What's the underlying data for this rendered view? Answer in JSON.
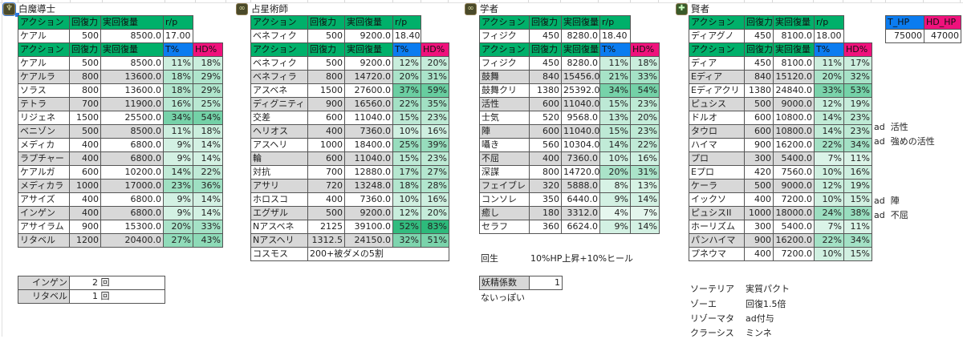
{
  "columns": {
    "action": "アクション",
    "power": "回復力",
    "actual": "実回復量",
    "rp": "r/p",
    "t": "T%",
    "hd": "HD%"
  },
  "colors": {
    "header_green": "#00b06a",
    "t_blue": "#0b7cf0",
    "hd_pink": "#f0117c",
    "row_gray": "#d8d8d8"
  },
  "hp": {
    "t_label": "T_HP",
    "hd_label": "HD_HP",
    "t_value": "75000",
    "hd_value": "47000"
  },
  "whm": {
    "title": "白魔導士",
    "icon": "staff-icon",
    "base": {
      "name": "ケアル",
      "power": "500",
      "actual": "8500.0",
      "rp": "17.00"
    },
    "rows": [
      {
        "name": "ケアル",
        "power": "500",
        "actual": "8500.0",
        "t": "11%",
        "hd": "18%"
      },
      {
        "name": "ケアルラ",
        "power": "800",
        "actual": "13600.0",
        "t": "18%",
        "hd": "29%"
      },
      {
        "name": "ソラス",
        "power": "800",
        "actual": "13600.0",
        "t": "18%",
        "hd": "29%"
      },
      {
        "name": "テトラ",
        "power": "700",
        "actual": "11900.0",
        "t": "16%",
        "hd": "25%"
      },
      {
        "name": "リジェネ",
        "power": "1500",
        "actual": "25500.0",
        "t": "34%",
        "hd": "54%"
      },
      {
        "name": "ベニゾン",
        "power": "500",
        "actual": "8500.0",
        "t": "11%",
        "hd": "18%"
      },
      {
        "name": "メディカ",
        "power": "400",
        "actual": "6800.0",
        "t": "9%",
        "hd": "14%"
      },
      {
        "name": "ラプチャー",
        "power": "400",
        "actual": "6800.0",
        "t": "9%",
        "hd": "14%"
      },
      {
        "name": "ケアルガ",
        "power": "600",
        "actual": "10200.0",
        "t": "14%",
        "hd": "22%"
      },
      {
        "name": "メディカラ",
        "power": "1000",
        "actual": "17000.0",
        "t": "23%",
        "hd": "36%"
      },
      {
        "name": "アサイズ",
        "power": "400",
        "actual": "6800.0",
        "t": "9%",
        "hd": "14%"
      },
      {
        "name": "インゲン",
        "power": "400",
        "actual": "6800.0",
        "t": "9%",
        "hd": "14%"
      },
      {
        "name": "アサイラム",
        "power": "900",
        "actual": "15300.0",
        "t": "20%",
        "hd": "33%"
      },
      {
        "name": "リタベル",
        "power": "1200",
        "actual": "20400.0",
        "t": "27%",
        "hd": "43%"
      }
    ],
    "counts": [
      {
        "name": "インゲン",
        "value": "2 回"
      },
      {
        "name": "リタベル",
        "value": "1 回"
      }
    ]
  },
  "ast": {
    "title": "占星術師",
    "icon": "scales-icon",
    "base": {
      "name": "ベネフィク",
      "power": "500",
      "actual": "9200.0",
      "rp": "18.40"
    },
    "rows": [
      {
        "name": "ベネフィク",
        "power": "500",
        "actual": "9200.0",
        "t": "12%",
        "hd": "20%"
      },
      {
        "name": "ベネフィラ",
        "power": "800",
        "actual": "14720.0",
        "t": "20%",
        "hd": "31%"
      },
      {
        "name": "アスベネ",
        "power": "1500",
        "actual": "27600.0",
        "t": "37%",
        "hd": "59%"
      },
      {
        "name": "ディグニティ",
        "power": "900",
        "actual": "16560.0",
        "t": "22%",
        "hd": "35%"
      },
      {
        "name": "交差",
        "power": "600",
        "actual": "11040.0",
        "t": "15%",
        "hd": "23%"
      },
      {
        "name": "ヘリオス",
        "power": "400",
        "actual": "7360.0",
        "t": "10%",
        "hd": "16%"
      },
      {
        "name": "アスヘリ",
        "power": "1000",
        "actual": "18400.0",
        "t": "25%",
        "hd": "39%"
      },
      {
        "name": "輪",
        "power": "600",
        "actual": "11040.0",
        "t": "15%",
        "hd": "23%"
      },
      {
        "name": "対抗",
        "power": "700",
        "actual": "12880.0",
        "t": "17%",
        "hd": "27%"
      },
      {
        "name": "アサリ",
        "power": "720",
        "actual": "13248.0",
        "t": "18%",
        "hd": "28%"
      },
      {
        "name": "ホロスコ",
        "power": "400",
        "actual": "7360.0",
        "t": "10%",
        "hd": "16%"
      },
      {
        "name": "エグザル",
        "power": "500",
        "actual": "9200.0",
        "t": "12%",
        "hd": "20%"
      },
      {
        "name": "Nアスベネ",
        "power": "2125",
        "actual": "39100.0",
        "t": "52%",
        "hd": "83%"
      },
      {
        "name": "Nアスヘリ",
        "power": "1312.5",
        "actual": "24150.0",
        "t": "32%",
        "hd": "51%"
      }
    ],
    "cosmos": {
      "name": "コスモス",
      "value": "200+被ダメの5割"
    }
  },
  "sch": {
    "title": "学者",
    "icon": "scales-icon",
    "base": {
      "name": "フィジク",
      "power": "450",
      "actual": "8280.0",
      "rp": "18.40"
    },
    "rows": [
      {
        "name": "フィジク",
        "power": "450",
        "actual": "8280.0",
        "t": "11%",
        "hd": "18%"
      },
      {
        "name": "鼓舞",
        "power": "840",
        "actual": "15456.0",
        "t": "21%",
        "hd": "33%"
      },
      {
        "name": "鼓舞クリ",
        "power": "1380",
        "actual": "25392.0",
        "t": "34%",
        "hd": "54%"
      },
      {
        "name": "活性",
        "power": "600",
        "actual": "11040.0",
        "t": "15%",
        "hd": "23%"
      },
      {
        "name": "士気",
        "power": "520",
        "actual": "9568.0",
        "t": "13%",
        "hd": "20%"
      },
      {
        "name": "陣",
        "power": "600",
        "actual": "11040.0",
        "t": "15%",
        "hd": "23%"
      },
      {
        "name": "囁き",
        "power": "560",
        "actual": "10304.0",
        "t": "14%",
        "hd": "22%"
      },
      {
        "name": "不屈",
        "power": "400",
        "actual": "7360.0",
        "t": "10%",
        "hd": "16%"
      },
      {
        "name": "深謀",
        "power": "800",
        "actual": "14720.0",
        "t": "20%",
        "hd": "31%"
      },
      {
        "name": "フェイブレ",
        "power": "320",
        "actual": "5888.0",
        "t": "8%",
        "hd": "13%"
      },
      {
        "name": "コンソレ",
        "power": "350",
        "actual": "6440.0",
        "t": "9%",
        "hd": "14%"
      },
      {
        "name": "癒し",
        "power": "180",
        "actual": "3312.0",
        "t": "4%",
        "hd": "7%"
      },
      {
        "name": "セラフ",
        "power": "360",
        "actual": "6624.0",
        "t": "9%",
        "hd": "14%"
      }
    ],
    "regen": {
      "name": "回生",
      "value": "10%HP上昇+10%ヒール"
    },
    "fairy": {
      "name": "妖精係数",
      "value": "1"
    },
    "fairy_note": "ないっぽい"
  },
  "sge": {
    "title": "賢者",
    "icon": "cross-icon",
    "base": {
      "name": "ディアグノ",
      "power": "450",
      "actual": "8100.0",
      "rp": "18.00"
    },
    "rows": [
      {
        "name": "ディア",
        "power": "450",
        "actual": "8100.0",
        "t": "11%",
        "hd": "17%",
        "note": ""
      },
      {
        "name": "Eディア",
        "power": "840",
        "actual": "15120.0",
        "t": "20%",
        "hd": "32%",
        "note": ""
      },
      {
        "name": "Eディアクリ",
        "power": "1380",
        "actual": "24840.0",
        "t": "33%",
        "hd": "53%",
        "note": ""
      },
      {
        "name": "ピュシス",
        "power": "500",
        "actual": "9000.0",
        "t": "12%",
        "hd": "19%",
        "note": ""
      },
      {
        "name": "ドルオ",
        "power": "600",
        "actual": "10800.0",
        "t": "14%",
        "hd": "23%",
        "note": "ad  活性"
      },
      {
        "name": "タウロ",
        "power": "600",
        "actual": "10800.0",
        "t": "14%",
        "hd": "23%",
        "note": "ad  強めの活性"
      },
      {
        "name": "ハイマ",
        "power": "900",
        "actual": "16200.0",
        "t": "22%",
        "hd": "34%",
        "note": ""
      },
      {
        "name": "プロ",
        "power": "300",
        "actual": "5400.0",
        "t": "7%",
        "hd": "11%",
        "note": ""
      },
      {
        "name": "Eプロ",
        "power": "420",
        "actual": "7560.0",
        "t": "10%",
        "hd": "16%",
        "note": ""
      },
      {
        "name": "ケーラ",
        "power": "500",
        "actual": "9000.0",
        "t": "12%",
        "hd": "19%",
        "note": "ad  陣"
      },
      {
        "name": "イックソ",
        "power": "400",
        "actual": "7200.0",
        "t": "10%",
        "hd": "15%",
        "note": "ad  不屈"
      },
      {
        "name": "ピュシスII",
        "power": "1000",
        "actual": "18000.0",
        "t": "24%",
        "hd": "38%",
        "note": ""
      },
      {
        "name": "ホーリズム",
        "power": "300",
        "actual": "5400.0",
        "t": "7%",
        "hd": "11%",
        "note": ""
      },
      {
        "name": "パンハイマ",
        "power": "900",
        "actual": "16200.0",
        "t": "22%",
        "hd": "34%",
        "note": ""
      },
      {
        "name": "プネウマ",
        "power": "400",
        "actual": "7200.0",
        "t": "10%",
        "hd": "15%",
        "note": ""
      }
    ],
    "notes": [
      {
        "name": "ソーテリア",
        "value": "実質パクト"
      },
      {
        "name": "ゾーエ",
        "value": "回復1.5倍"
      },
      {
        "name": "リゾーマタ",
        "value": "ad付与"
      },
      {
        "name": "クラーシス",
        "value": "ミンネ"
      }
    ]
  }
}
